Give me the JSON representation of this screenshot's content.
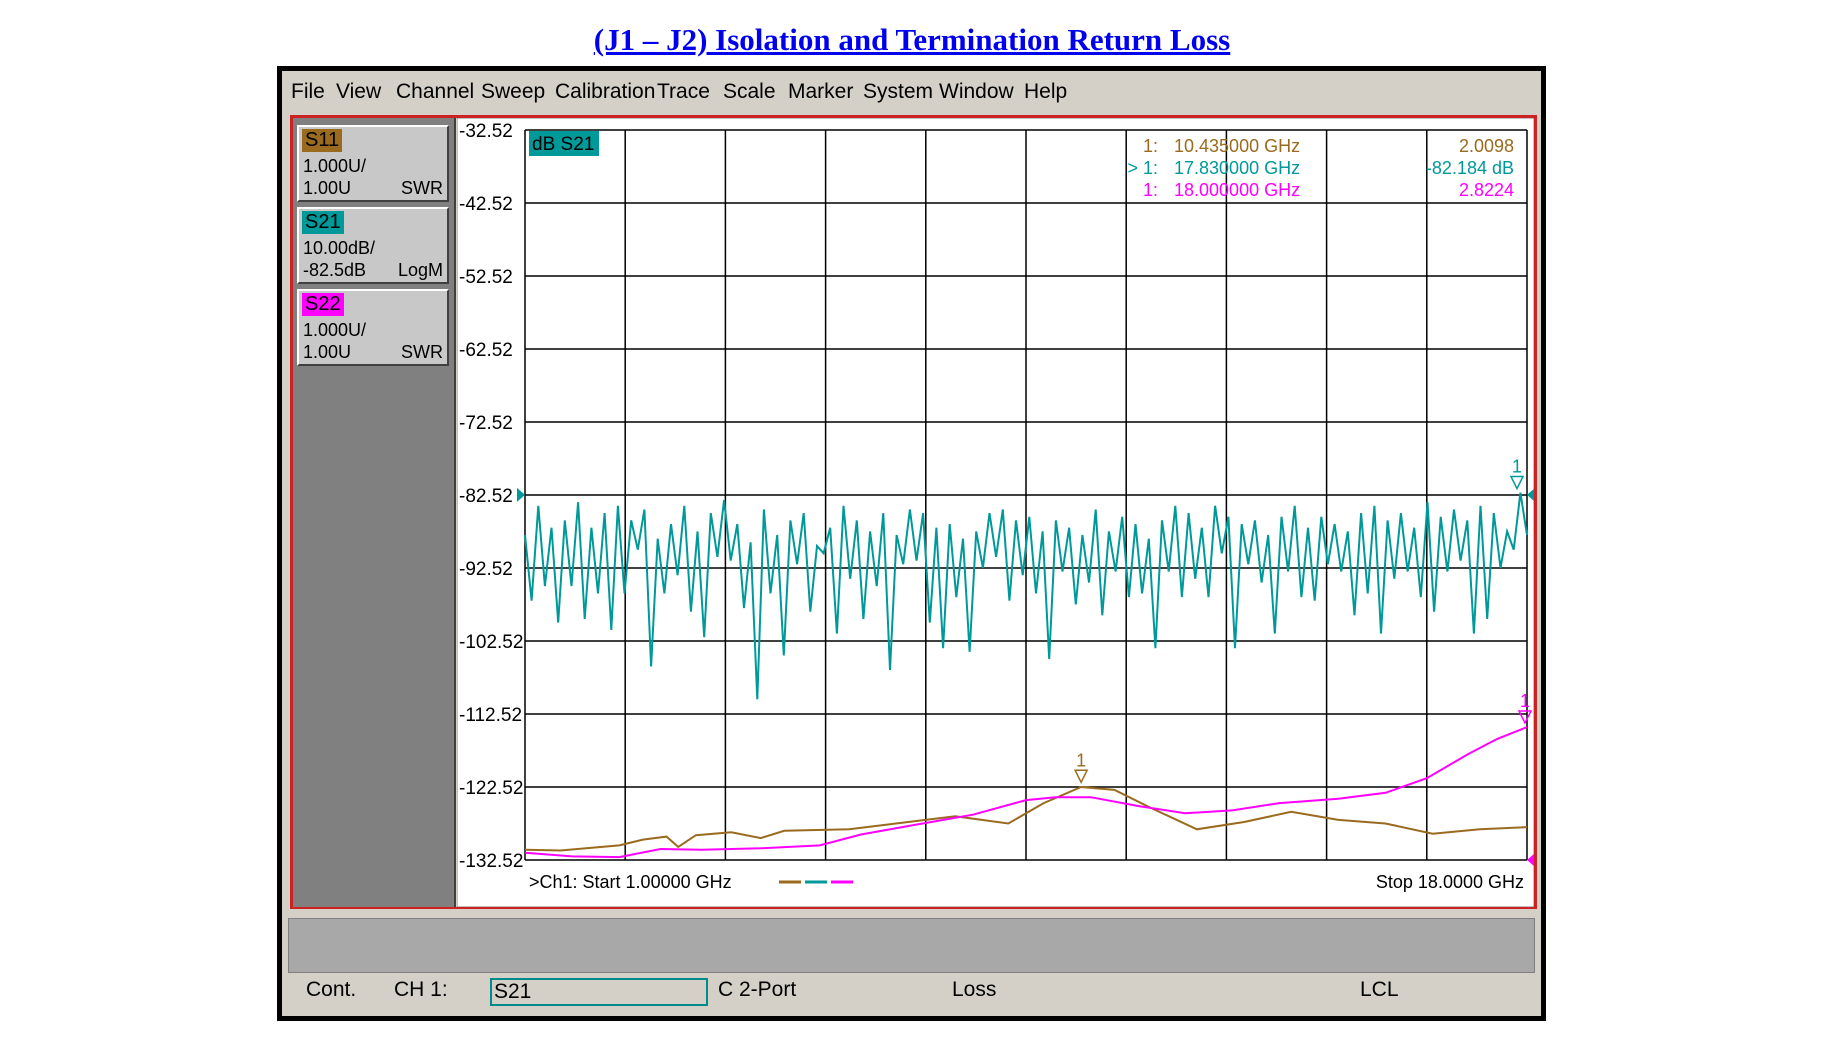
{
  "page_title": "(J1 – J2) Isolation and Termination Return Loss",
  "menu": [
    "File",
    "View",
    "Channel",
    "Sweep",
    "Calibration",
    "Trace",
    "Scale",
    "Marker",
    "System",
    "Window",
    "Help"
  ],
  "traces": [
    {
      "name": "S11",
      "scale": "1.000U/",
      "ref": "1.00U",
      "format": "SWR",
      "color": "#9a6a1e"
    },
    {
      "name": "S21",
      "scale": "10.00dB/",
      "ref": "-82.5dB",
      "format": "LogM",
      "color": "#009999"
    },
    {
      "name": "S22",
      "scale": "1.000U/",
      "ref": "1.00U",
      "format": "SWR",
      "color": "#ff00ff"
    }
  ],
  "plot": {
    "trace_label": "dB S21",
    "y_ticks": [
      "-32.52",
      "-42.52",
      "-52.52",
      "-62.52",
      "-72.52",
      "-82.52",
      "-92.52",
      "-102.52",
      "-112.52",
      "-122.52",
      "-132.52"
    ],
    "start_label": ">Ch1: Start  1.00000 GHz",
    "stop_label": "Stop  18.0000 GHz"
  },
  "markers": [
    {
      "num": "1:",
      "freq": "10.435000 GHz",
      "value": "2.0098",
      "color": "#9a6a1e"
    },
    {
      "num": "> 1:",
      "freq": "17.830000 GHz",
      "value": "-82.184 dB",
      "color": "#009999"
    },
    {
      "num": "1:",
      "freq": "18.000000 GHz",
      "value": "2.8224",
      "color": "#ff00ff"
    }
  ],
  "status": {
    "mode": "Cont.",
    "channel": "CH 1:",
    "active_trace": "S21",
    "cal": "C  2-Port",
    "loss": "Loss",
    "remote": "LCL"
  },
  "chart_data": {
    "type": "line",
    "x_range_ghz": [
      1.0,
      18.0
    ],
    "series": [
      {
        "name": "S21",
        "unit": "dB",
        "y_range": [
          -132.52,
          -32.52
        ],
        "values_db": [
          -88.0,
          -97.0,
          -84.0,
          -95.0,
          -87.0,
          -100.0,
          -86.0,
          -95.0,
          -83.5,
          -99.5,
          -87.0,
          -96.0,
          -85.0,
          -101.0,
          -84.0,
          -96.0,
          -86.0,
          -90.0,
          -84.5,
          -106.0,
          -88.5,
          -96.0,
          -86.5,
          -93.5,
          -84.0,
          -98.5,
          -87.5,
          -102.0,
          -85.0,
          -91.0,
          -83.2,
          -91.5,
          -86.5,
          -98.0,
          -89.0,
          -110.5,
          -84.5,
          -96.0,
          -88.0,
          -104.5,
          -86.0,
          -92.0,
          -85.0,
          -98.5,
          -89.5,
          -90.5,
          -87.0,
          -101.5,
          -84.0,
          -94.0,
          -86.0,
          -99.5,
          -87.5,
          -95.0,
          -85.0,
          -106.5,
          -88.0,
          -92.0,
          -84.5,
          -91.5,
          -85.0,
          -100.0,
          -87.0,
          -103.5,
          -86.5,
          -96.5,
          -88.5,
          -104.0,
          -87.5,
          -92.5,
          -85.0,
          -91.0,
          -84.5,
          -97.0,
          -86.0,
          -93.5,
          -85.5,
          -96.0,
          -87.5,
          -105.0,
          -86.0,
          -93.0,
          -87.0,
          -97.5,
          -88.0,
          -94.5,
          -84.5,
          -99.0,
          -87.5,
          -93.0,
          -85.5,
          -96.5,
          -86.5,
          -96.0,
          -88.5,
          -103.5,
          -86.0,
          -93.0,
          -84.0,
          -96.5,
          -85.0,
          -94.0,
          -87.0,
          -96.5,
          -84.0,
          -90.5,
          -85.5,
          -103.5,
          -86.5,
          -92.0,
          -86.0,
          -94.5,
          -88.0,
          -101.5,
          -85.5,
          -93.0,
          -84.0,
          -96.5,
          -87.0,
          -97.0,
          -85.5,
          -92.0,
          -86.5,
          -93.0,
          -87.5,
          -99.0,
          -85.0,
          -96.0,
          -84.0,
          -101.5,
          -86.0,
          -94.0,
          -85.0,
          -93.0,
          -87.0,
          -96.5,
          -83.5,
          -98.5,
          -85.5,
          -93.0,
          -84.5,
          -91.5,
          -86.0,
          -101.5,
          -84.0,
          -99.5,
          -85.0,
          -92.5,
          -87.5,
          -90.0,
          -82.2,
          -88.0
        ]
      },
      {
        "name": "S11",
        "unit": "U",
        "marker": {
          "x": 10.435,
          "y": 2.0098
        },
        "points": [
          [
            1.0,
            1.14
          ],
          [
            1.6,
            1.13
          ],
          [
            2.6,
            1.2
          ],
          [
            3.0,
            1.28
          ],
          [
            3.4,
            1.32
          ],
          [
            3.6,
            1.18
          ],
          [
            3.9,
            1.34
          ],
          [
            4.5,
            1.38
          ],
          [
            5.0,
            1.3
          ],
          [
            5.4,
            1.4
          ],
          [
            6.5,
            1.42
          ],
          [
            7.5,
            1.52
          ],
          [
            8.3,
            1.6
          ],
          [
            9.2,
            1.5
          ],
          [
            9.8,
            1.78
          ],
          [
            10.435,
            2.0
          ],
          [
            11.0,
            1.96
          ],
          [
            11.6,
            1.72
          ],
          [
            12.4,
            1.42
          ],
          [
            13.2,
            1.52
          ],
          [
            14.0,
            1.66
          ],
          [
            14.8,
            1.55
          ],
          [
            15.6,
            1.5
          ],
          [
            16.4,
            1.36
          ],
          [
            17.2,
            1.42
          ],
          [
            18.0,
            1.45
          ]
        ]
      },
      {
        "name": "S22",
        "unit": "U",
        "marker": {
          "x": 18.0,
          "y": 2.8224
        },
        "points": [
          [
            1.0,
            1.1
          ],
          [
            1.8,
            1.05
          ],
          [
            2.6,
            1.04
          ],
          [
            3.3,
            1.15
          ],
          [
            4.0,
            1.14
          ],
          [
            5.0,
            1.16
          ],
          [
            6.0,
            1.2
          ],
          [
            6.7,
            1.35
          ],
          [
            7.6,
            1.48
          ],
          [
            8.6,
            1.62
          ],
          [
            9.5,
            1.82
          ],
          [
            10.0,
            1.86
          ],
          [
            10.6,
            1.86
          ],
          [
            11.4,
            1.74
          ],
          [
            12.2,
            1.64
          ],
          [
            13.0,
            1.68
          ],
          [
            13.8,
            1.78
          ],
          [
            14.8,
            1.84
          ],
          [
            15.6,
            1.92
          ],
          [
            16.3,
            2.12
          ],
          [
            17.0,
            2.45
          ],
          [
            17.5,
            2.66
          ],
          [
            18.0,
            2.82
          ]
        ]
      }
    ]
  }
}
